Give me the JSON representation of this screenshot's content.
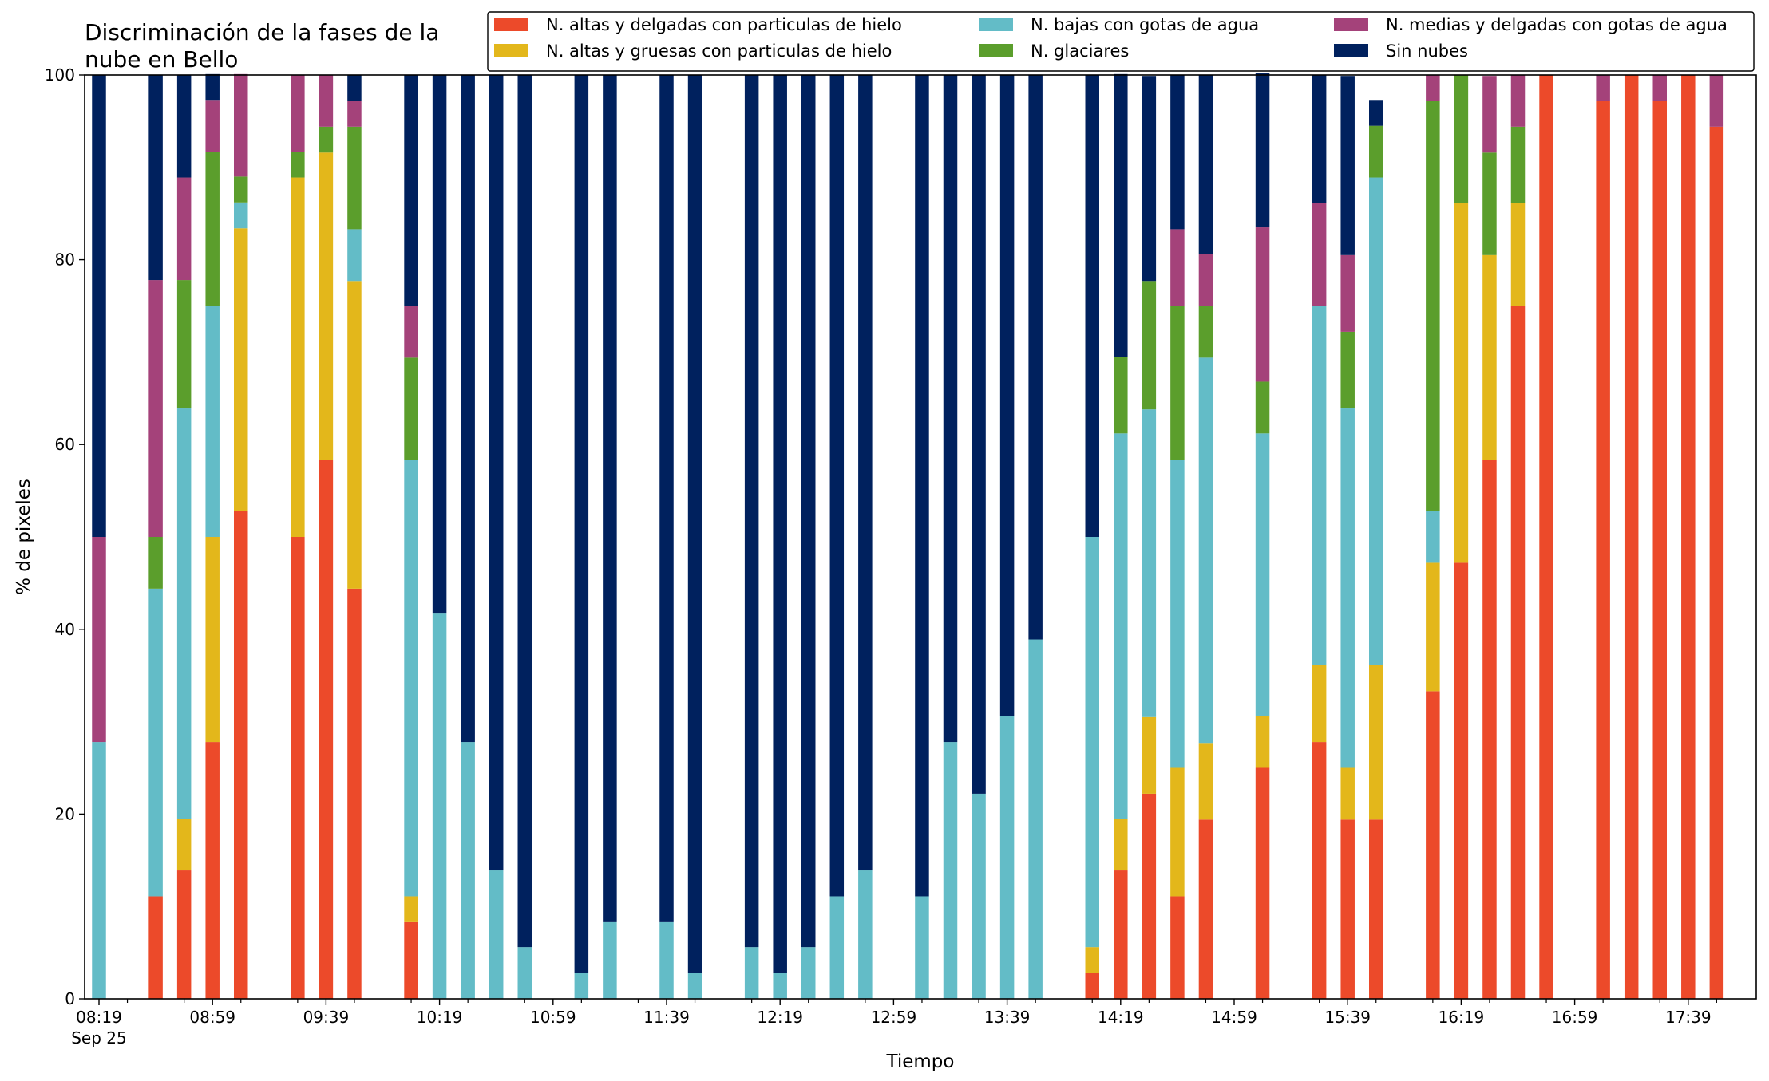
{
  "chart_data": {
    "type": "bar",
    "stacked": true,
    "title": [
      "Discriminación de la fases de la",
      "nube en Bello"
    ],
    "xlabel": "Tiempo",
    "ylabel": "% de pixeles",
    "ylim": [
      0,
      100
    ],
    "yticks": [
      0,
      20,
      40,
      60,
      80,
      100
    ],
    "grid": false,
    "legend_position": "top-right",
    "x_start": "08:19",
    "x_step_minutes": 10,
    "x_count": 58,
    "xtick_labels": [
      "08:19",
      "08:59",
      "09:39",
      "10:19",
      "10:59",
      "11:39",
      "12:19",
      "12:59",
      "13:39",
      "14:19",
      "14:59",
      "15:39",
      "16:19",
      "16:59",
      "17:39"
    ],
    "xtick_date": "Sep 25",
    "series": [
      {
        "name": "N. altas y delgadas con particulas de hielo",
        "color": "#ec4a2a",
        "values": [
          0,
          null,
          11.1,
          13.9,
          27.8,
          52.8,
          null,
          50,
          58.3,
          44.4,
          null,
          8.3,
          0,
          0,
          0,
          0,
          null,
          0,
          0,
          null,
          0,
          0,
          null,
          0,
          0,
          0,
          0,
          0,
          null,
          0,
          0,
          0,
          0,
          0,
          null,
          2.8,
          13.9,
          22.2,
          11.1,
          19.4,
          null,
          25,
          null,
          27.8,
          19.4,
          19.4,
          null,
          33.3,
          47.2,
          58.3,
          75,
          100,
          null,
          97.2,
          100,
          97.2,
          100,
          94.4
        ]
      },
      {
        "name": "N. altas y gruesas con particulas de hielo",
        "color": "#e3b71b",
        "values": [
          0,
          null,
          0,
          5.6,
          22.2,
          30.6,
          null,
          38.9,
          33.3,
          33.3,
          null,
          2.8,
          0,
          0,
          0,
          0,
          null,
          0,
          0,
          null,
          0,
          0,
          null,
          0,
          0,
          0,
          0,
          0,
          null,
          0,
          0,
          0,
          0,
          0,
          null,
          2.8,
          5.6,
          8.3,
          13.9,
          8.3,
          null,
          5.6,
          null,
          8.3,
          5.6,
          16.7,
          null,
          13.9,
          38.9,
          22.2,
          11.1,
          0,
          null,
          0,
          0,
          0,
          0,
          0
        ]
      },
      {
        "name": "N. bajas con gotas de agua",
        "color": "#63bcc7",
        "values": [
          27.8,
          null,
          33.3,
          44.4,
          25,
          2.8,
          null,
          0,
          0,
          5.6,
          null,
          47.2,
          41.7,
          27.8,
          13.9,
          5.6,
          null,
          2.8,
          8.3,
          null,
          8.3,
          2.8,
          null,
          5.6,
          2.8,
          5.6,
          11.1,
          13.9,
          null,
          11.1,
          27.8,
          22.2,
          30.6,
          38.9,
          null,
          44.4,
          41.7,
          33.3,
          33.3,
          41.7,
          null,
          30.6,
          null,
          38.9,
          38.9,
          52.8,
          null,
          5.6,
          0,
          0,
          0,
          0,
          null,
          0,
          0,
          0,
          0,
          0
        ]
      },
      {
        "name": "N. glaciares",
        "color": "#5b9e2c",
        "values": [
          0,
          null,
          5.6,
          13.9,
          16.7,
          2.8,
          null,
          2.8,
          2.8,
          11.1,
          null,
          11.1,
          0,
          0,
          0,
          0,
          null,
          0,
          0,
          null,
          0,
          0,
          null,
          0,
          0,
          0,
          0,
          0,
          null,
          0,
          0,
          0,
          0,
          0,
          null,
          0,
          8.3,
          13.9,
          16.7,
          5.6,
          null,
          5.6,
          null,
          0,
          8.3,
          5.6,
          null,
          44.4,
          13.9,
          11.1,
          8.3,
          0,
          null,
          0,
          0,
          0,
          0,
          0
        ]
      },
      {
        "name": "N. medias y delgadas con gotas de agua",
        "color": "#a4427a",
        "values": [
          22.2,
          null,
          27.8,
          11.1,
          5.6,
          11.1,
          null,
          8.3,
          5.6,
          2.8,
          null,
          5.6,
          0,
          0,
          0,
          0,
          null,
          0,
          0,
          null,
          0,
          0,
          null,
          0,
          0,
          0,
          0,
          0,
          null,
          0,
          0,
          0,
          0,
          0,
          null,
          0,
          0,
          0,
          8.3,
          5.6,
          null,
          16.7,
          null,
          11.1,
          8.3,
          0,
          null,
          2.8,
          0,
          8.3,
          5.6,
          0,
          null,
          2.8,
          0,
          2.8,
          0,
          5.6
        ]
      },
      {
        "name": "Sin nubes",
        "color": "#00215e",
        "values": [
          50,
          null,
          22.2,
          11.1,
          2.8,
          0,
          null,
          0,
          0,
          2.8,
          null,
          25,
          58.3,
          72.2,
          86.1,
          94.4,
          null,
          97.2,
          91.7,
          null,
          91.7,
          97.2,
          null,
          94.4,
          97.2,
          94.4,
          88.9,
          86.1,
          null,
          88.9,
          72.2,
          77.8,
          69.4,
          61.1,
          null,
          50,
          30.6,
          22.2,
          16.7,
          19.4,
          null,
          16.7,
          null,
          13.9,
          19.4,
          2.8,
          null,
          0,
          0,
          0,
          0,
          0,
          null,
          0,
          0,
          0,
          0,
          0
        ]
      }
    ]
  }
}
